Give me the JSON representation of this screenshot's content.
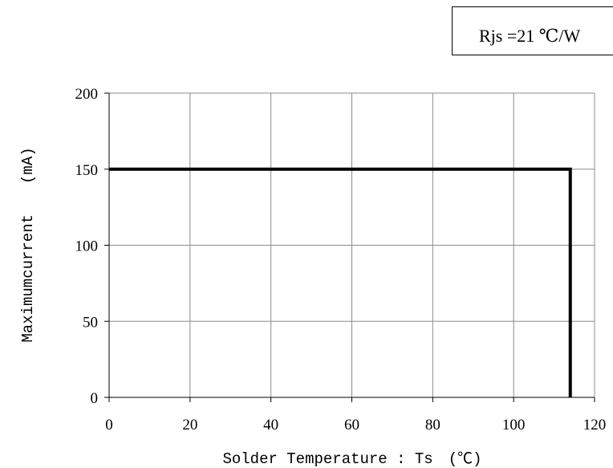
{
  "chart_data": {
    "type": "line",
    "title": "",
    "xlabel": "Solder Temperature : Ts　(℃)",
    "ylabel": "Maximumcurrent　　(mA)",
    "xlim": [
      0,
      120
    ],
    "ylim": [
      0,
      200
    ],
    "x_ticks": [
      0,
      20,
      40,
      60,
      80,
      100,
      120
    ],
    "y_ticks": [
      0,
      50,
      100,
      150,
      200
    ],
    "grid": true,
    "annotation": "Rjs =21 ℃/W",
    "series": [
      {
        "x": [
          0,
          114,
          114
        ],
        "y": [
          150,
          150,
          0
        ],
        "color": "#000000"
      }
    ]
  }
}
